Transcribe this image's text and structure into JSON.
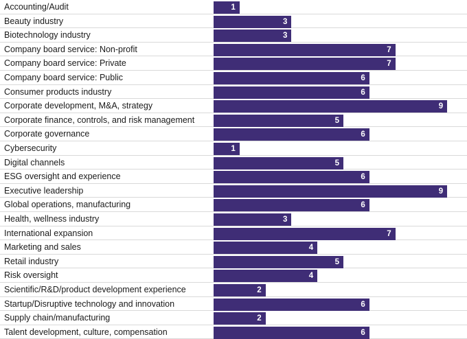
{
  "chart_data": {
    "type": "bar",
    "orientation": "horizontal",
    "bar_color": "#3f2d76",
    "label_color": "#1a1a1a",
    "value_label_color": "#ffffff",
    "gridline_color": "#d9d9d9",
    "xlim": [
      0,
      9
    ],
    "categories": [
      "Accounting/Audit",
      "Beauty industry",
      "Biotechnology industry",
      "Company board service: Non-profit",
      "Company board service: Private",
      "Company board service: Public",
      "Consumer products industry",
      "Corporate development, M&A, strategy",
      "Corporate finance, controls, and risk management",
      "Corporate governance",
      "Cybersecurity",
      "Digital channels",
      "ESG oversight and experience",
      "Executive leadership",
      "Global operations, manufacturing",
      "Health, wellness industry",
      "International expansion",
      "Marketing and sales",
      "Retail industry",
      "Risk oversight",
      "Scientific/R&D/product development experience",
      "Startup/Disruptive technology and innovation",
      "Supply chain/manufacturing",
      "Talent development, culture, compensation"
    ],
    "values": [
      1,
      3,
      3,
      7,
      7,
      6,
      6,
      9,
      5,
      6,
      1,
      5,
      6,
      9,
      6,
      3,
      7,
      4,
      5,
      4,
      2,
      6,
      2,
      6
    ]
  }
}
